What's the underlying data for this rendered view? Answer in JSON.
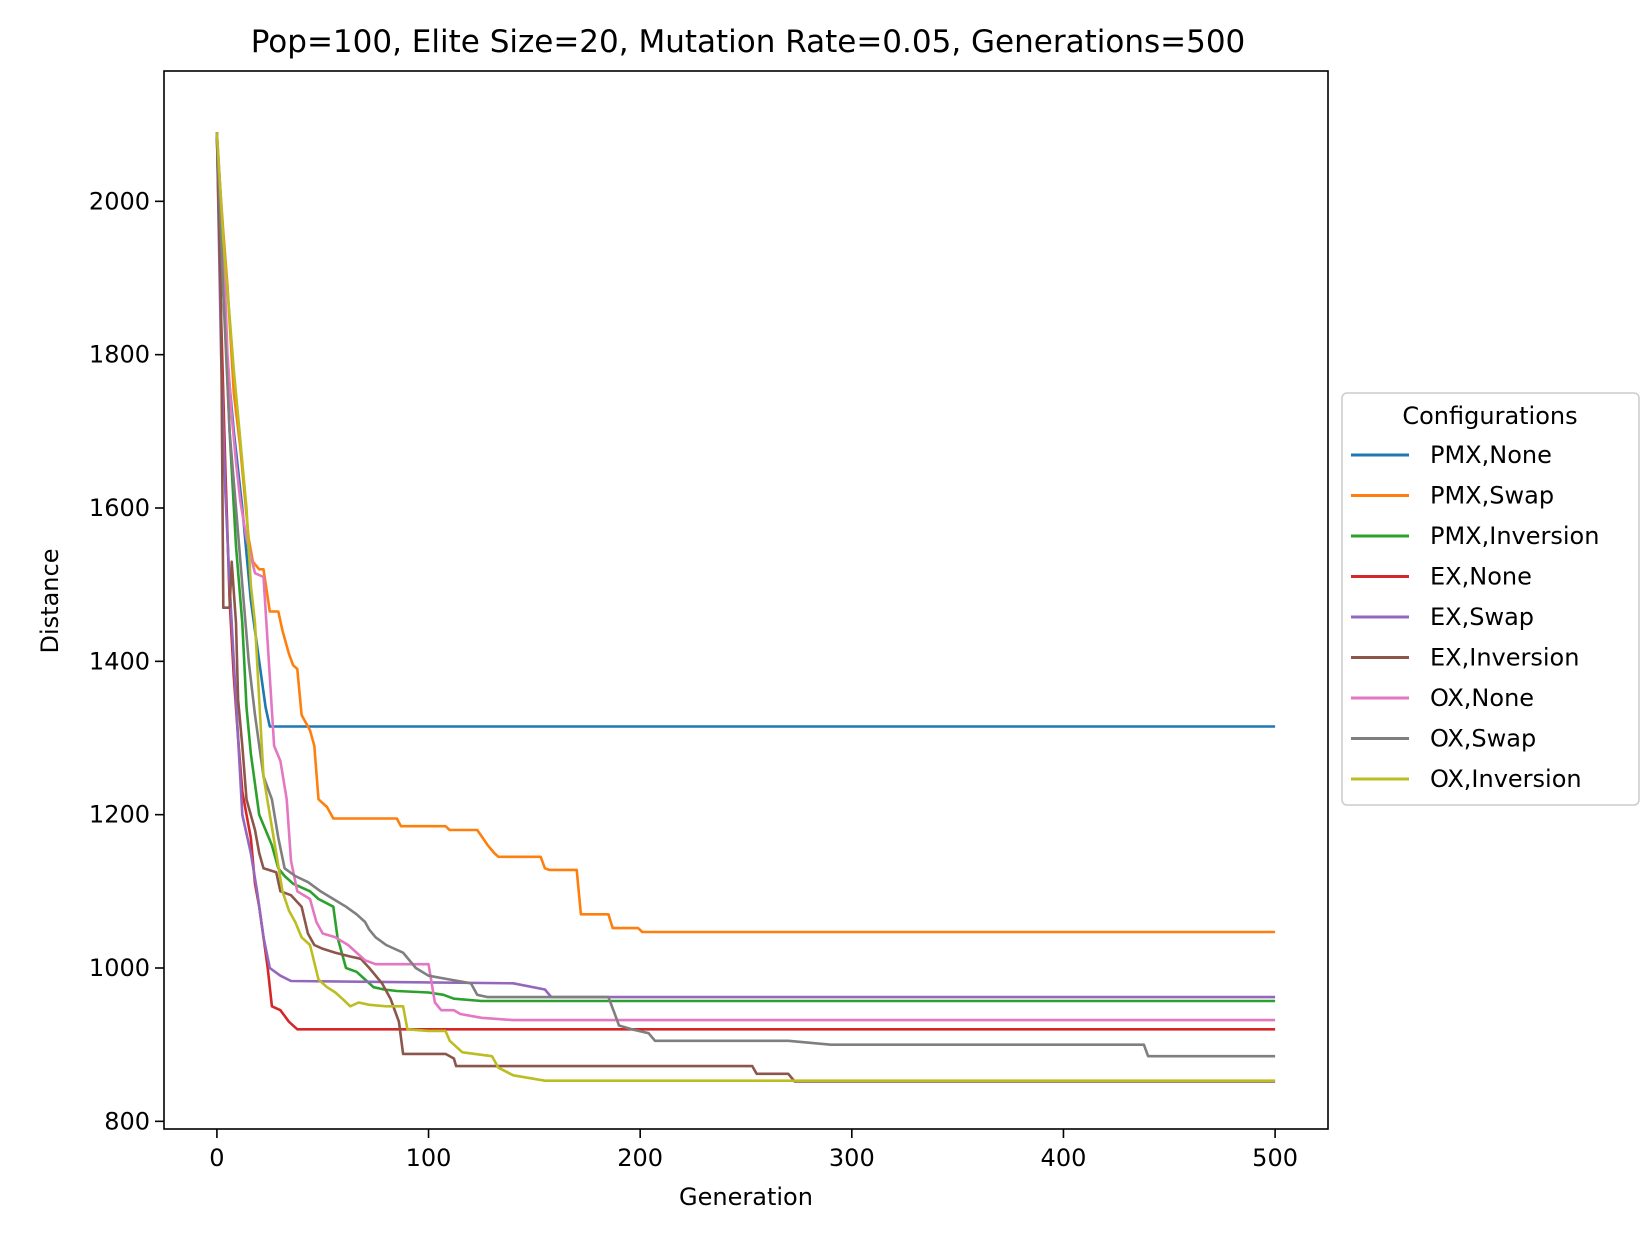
{
  "chart_data": {
    "type": "line",
    "title": "Pop=100, Elite Size=20, Mutation Rate=0.05, Generations=500",
    "xlabel": "Generation",
    "ylabel": "Distance",
    "xlim": [
      -25,
      525
    ],
    "ylim": [
      790,
      2170
    ],
    "xticks": [
      0,
      100,
      200,
      300,
      400,
      500
    ],
    "yticks": [
      800,
      1000,
      1200,
      1400,
      1600,
      1800,
      2000
    ],
    "grid": false,
    "legend": {
      "title": "Configurations",
      "placement": "outside-right"
    },
    "series": [
      {
        "name": "PMX,None",
        "color": "#1f77b4",
        "points": [
          [
            0,
            2090
          ],
          [
            2,
            1930
          ],
          [
            5,
            1790
          ],
          [
            8,
            1700
          ],
          [
            12,
            1600
          ],
          [
            16,
            1480
          ],
          [
            20,
            1400
          ],
          [
            23,
            1340
          ],
          [
            25,
            1315
          ],
          [
            500,
            1315
          ]
        ]
      },
      {
        "name": "PMX,Swap",
        "color": "#ff7f0e",
        "points": [
          [
            0,
            2080
          ],
          [
            3,
            1960
          ],
          [
            5,
            1890
          ],
          [
            8,
            1750
          ],
          [
            11,
            1680
          ],
          [
            13,
            1620
          ],
          [
            15,
            1560
          ],
          [
            17,
            1530
          ],
          [
            20,
            1520
          ],
          [
            22,
            1520
          ],
          [
            25,
            1465
          ],
          [
            29,
            1465
          ],
          [
            31,
            1440
          ],
          [
            34,
            1410
          ],
          [
            36,
            1395
          ],
          [
            38,
            1390
          ],
          [
            40,
            1330
          ],
          [
            44,
            1310
          ],
          [
            46,
            1290
          ],
          [
            48,
            1220
          ],
          [
            52,
            1210
          ],
          [
            55,
            1195
          ],
          [
            85,
            1195
          ],
          [
            87,
            1185
          ],
          [
            108,
            1185
          ],
          [
            110,
            1180
          ],
          [
            123,
            1180
          ],
          [
            125,
            1172
          ],
          [
            128,
            1160
          ],
          [
            131,
            1150
          ],
          [
            133,
            1145
          ],
          [
            153,
            1145
          ],
          [
            155,
            1130
          ],
          [
            157,
            1128
          ],
          [
            170,
            1128
          ],
          [
            172,
            1070
          ],
          [
            185,
            1070
          ],
          [
            187,
            1052
          ],
          [
            199,
            1052
          ],
          [
            201,
            1047
          ],
          [
            500,
            1047
          ]
        ]
      },
      {
        "name": "PMX,Inversion",
        "color": "#2ca02c",
        "points": [
          [
            0,
            2090
          ],
          [
            3,
            1900
          ],
          [
            6,
            1700
          ],
          [
            9,
            1550
          ],
          [
            12,
            1450
          ],
          [
            14,
            1340
          ],
          [
            16,
            1280
          ],
          [
            18,
            1240
          ],
          [
            20,
            1200
          ],
          [
            23,
            1180
          ],
          [
            26,
            1160
          ],
          [
            29,
            1130
          ],
          [
            32,
            1120
          ],
          [
            36,
            1110
          ],
          [
            44,
            1100
          ],
          [
            48,
            1090
          ],
          [
            55,
            1080
          ],
          [
            57,
            1040
          ],
          [
            61,
            1000
          ],
          [
            66,
            995
          ],
          [
            70,
            985
          ],
          [
            74,
            975
          ],
          [
            79,
            972
          ],
          [
            85,
            970
          ],
          [
            100,
            968
          ],
          [
            107,
            965
          ],
          [
            112,
            960
          ],
          [
            125,
            957
          ],
          [
            500,
            957
          ]
        ]
      },
      {
        "name": "EX,None",
        "color": "#d62728",
        "points": [
          [
            0,
            2090
          ],
          [
            2,
            1850
          ],
          [
            4,
            1650
          ],
          [
            6,
            1480
          ],
          [
            8,
            1380
          ],
          [
            10,
            1300
          ],
          [
            12,
            1230
          ],
          [
            14,
            1200
          ],
          [
            16,
            1170
          ],
          [
            18,
            1110
          ],
          [
            20,
            1080
          ],
          [
            22,
            1040
          ],
          [
            24,
            1000
          ],
          [
            26,
            950
          ],
          [
            30,
            945
          ],
          [
            34,
            930
          ],
          [
            38,
            920
          ],
          [
            500,
            920
          ]
        ]
      },
      {
        "name": "EX,Swap",
        "color": "#9467bd",
        "points": [
          [
            0,
            2090
          ],
          [
            2,
            1800
          ],
          [
            4,
            1620
          ],
          [
            6,
            1500
          ],
          [
            8,
            1400
          ],
          [
            10,
            1300
          ],
          [
            12,
            1200
          ],
          [
            16,
            1150
          ],
          [
            19,
            1100
          ],
          [
            22,
            1040
          ],
          [
            25,
            1000
          ],
          [
            30,
            990
          ],
          [
            35,
            983
          ],
          [
            140,
            980
          ],
          [
            155,
            972
          ],
          [
            158,
            962
          ],
          [
            500,
            962
          ]
        ]
      },
      {
        "name": "EX,Inversion",
        "color": "#8c564b",
        "points": [
          [
            0,
            2090
          ],
          [
            2,
            1855
          ],
          [
            3,
            1470
          ],
          [
            6,
            1470
          ],
          [
            7,
            1530
          ],
          [
            9,
            1450
          ],
          [
            10,
            1350
          ],
          [
            12,
            1290
          ],
          [
            14,
            1220
          ],
          [
            18,
            1180
          ],
          [
            20,
            1150
          ],
          [
            22,
            1130
          ],
          [
            28,
            1125
          ],
          [
            30,
            1100
          ],
          [
            35,
            1095
          ],
          [
            40,
            1080
          ],
          [
            43,
            1045
          ],
          [
            46,
            1030
          ],
          [
            50,
            1025
          ],
          [
            56,
            1020
          ],
          [
            63,
            1015
          ],
          [
            68,
            1012
          ],
          [
            72,
            1000
          ],
          [
            78,
            980
          ],
          [
            82,
            960
          ],
          [
            84,
            945
          ],
          [
            86,
            930
          ],
          [
            88,
            888
          ],
          [
            108,
            888
          ],
          [
            112,
            882
          ],
          [
            113,
            872
          ],
          [
            253,
            872
          ],
          [
            255,
            862
          ],
          [
            270,
            862
          ],
          [
            273,
            852
          ],
          [
            500,
            852
          ]
        ]
      },
      {
        "name": "OX,None",
        "color": "#e377c2",
        "points": [
          [
            0,
            2090
          ],
          [
            3,
            1950
          ],
          [
            5,
            1800
          ],
          [
            7,
            1720
          ],
          [
            9,
            1660
          ],
          [
            11,
            1610
          ],
          [
            14,
            1560
          ],
          [
            18,
            1515
          ],
          [
            22,
            1510
          ],
          [
            25,
            1380
          ],
          [
            27,
            1290
          ],
          [
            30,
            1270
          ],
          [
            33,
            1220
          ],
          [
            35,
            1140
          ],
          [
            38,
            1100
          ],
          [
            44,
            1090
          ],
          [
            47,
            1060
          ],
          [
            50,
            1045
          ],
          [
            56,
            1040
          ],
          [
            62,
            1030
          ],
          [
            70,
            1010
          ],
          [
            75,
            1005
          ],
          [
            100,
            1005
          ],
          [
            103,
            955
          ],
          [
            106,
            945
          ],
          [
            112,
            945
          ],
          [
            115,
            940
          ],
          [
            125,
            935
          ],
          [
            140,
            932
          ],
          [
            500,
            932
          ]
        ]
      },
      {
        "name": "OX,Swap",
        "color": "#7f7f7f",
        "points": [
          [
            0,
            2090
          ],
          [
            3,
            1880
          ],
          [
            6,
            1700
          ],
          [
            9,
            1600
          ],
          [
            12,
            1500
          ],
          [
            15,
            1400
          ],
          [
            18,
            1330
          ],
          [
            22,
            1250
          ],
          [
            26,
            1220
          ],
          [
            29,
            1170
          ],
          [
            32,
            1130
          ],
          [
            37,
            1120
          ],
          [
            43,
            1112
          ],
          [
            49,
            1100
          ],
          [
            55,
            1090
          ],
          [
            61,
            1080
          ],
          [
            66,
            1070
          ],
          [
            70,
            1060
          ],
          [
            72,
            1050
          ],
          [
            75,
            1040
          ],
          [
            80,
            1030
          ],
          [
            88,
            1020
          ],
          [
            94,
            1000
          ],
          [
            100,
            990
          ],
          [
            110,
            985
          ],
          [
            120,
            980
          ],
          [
            123,
            965
          ],
          [
            128,
            962
          ],
          [
            185,
            962
          ],
          [
            188,
            940
          ],
          [
            190,
            925
          ],
          [
            196,
            920
          ],
          [
            204,
            915
          ],
          [
            207,
            905
          ],
          [
            270,
            905
          ],
          [
            290,
            900
          ],
          [
            438,
            900
          ],
          [
            440,
            885
          ],
          [
            500,
            885
          ]
        ]
      },
      {
        "name": "OX,Inversion",
        "color": "#bcbd22",
        "points": [
          [
            0,
            2090
          ],
          [
            3,
            1950
          ],
          [
            6,
            1850
          ],
          [
            8,
            1780
          ],
          [
            10,
            1720
          ],
          [
            12,
            1660
          ],
          [
            14,
            1600
          ],
          [
            16,
            1500
          ],
          [
            18,
            1450
          ],
          [
            20,
            1350
          ],
          [
            22,
            1250
          ],
          [
            25,
            1200
          ],
          [
            28,
            1150
          ],
          [
            31,
            1100
          ],
          [
            34,
            1075
          ],
          [
            37,
            1060
          ],
          [
            40,
            1040
          ],
          [
            44,
            1030
          ],
          [
            48,
            985
          ],
          [
            52,
            975
          ],
          [
            56,
            968
          ],
          [
            60,
            958
          ],
          [
            63,
            950
          ],
          [
            67,
            955
          ],
          [
            72,
            952
          ],
          [
            80,
            950
          ],
          [
            88,
            950
          ],
          [
            90,
            920
          ],
          [
            100,
            918
          ],
          [
            108,
            918
          ],
          [
            110,
            905
          ],
          [
            116,
            890
          ],
          [
            130,
            885
          ],
          [
            133,
            870
          ],
          [
            140,
            860
          ],
          [
            155,
            853
          ],
          [
            500,
            853
          ]
        ]
      }
    ]
  }
}
